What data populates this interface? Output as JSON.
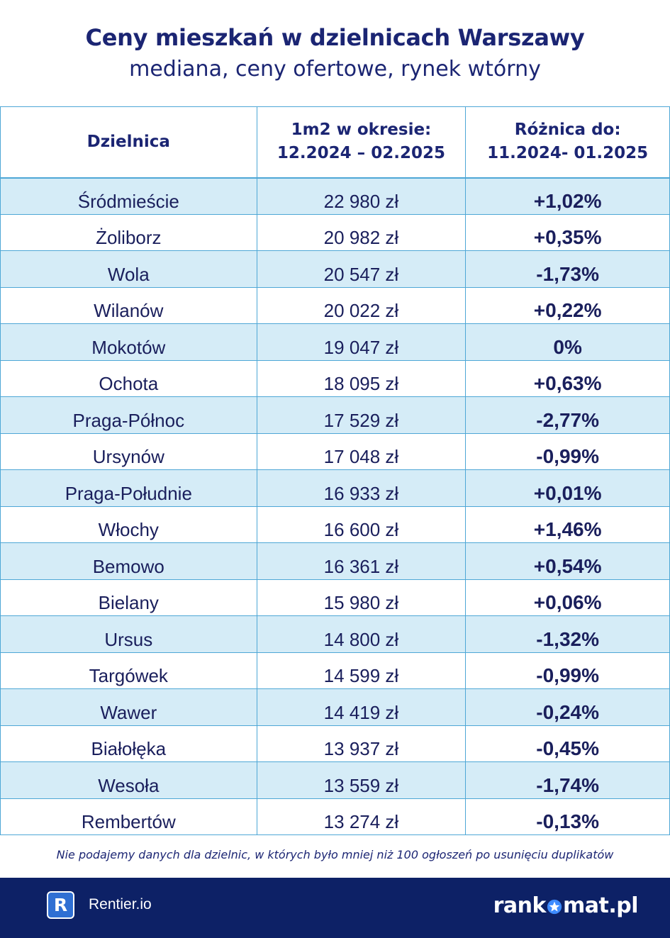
{
  "header": {
    "title": "Ceny mieszkań w dzielnicach Warszawy",
    "subtitle": "mediana, ceny ofertowe, rynek wtórny"
  },
  "table": {
    "columns": [
      {
        "line1": "Dzielnica",
        "line2": ""
      },
      {
        "line1": "1m2 w okresie:",
        "line2": "12.2024 – 02.2025"
      },
      {
        "line1": "Różnica do:",
        "line2": "11.2024- 01.2025"
      }
    ],
    "rows": [
      {
        "district": "Śródmieście",
        "price": "22 980 zł",
        "diff": "+1,02%"
      },
      {
        "district": "Żoliborz",
        "price": "20 982 zł",
        "diff": "+0,35%"
      },
      {
        "district": "Wola",
        "price": "20 547 zł",
        "diff": "-1,73%"
      },
      {
        "district": "Wilanów",
        "price": "20 022 zł",
        "diff": "+0,22%"
      },
      {
        "district": "Mokotów",
        "price": "19 047 zł",
        "diff": "0%"
      },
      {
        "district": "Ochota",
        "price": "18 095 zł",
        "diff": "+0,63%"
      },
      {
        "district": "Praga-Północ",
        "price": "17 529 zł",
        "diff": "-2,77%"
      },
      {
        "district": "Ursynów",
        "price": "17 048 zł",
        "diff": "-0,99%"
      },
      {
        "district": "Praga-Południe",
        "price": "16 933 zł",
        "diff": "+0,01%"
      },
      {
        "district": "Włochy",
        "price": "16 600 zł",
        "diff": "+1,46%"
      },
      {
        "district": "Bemowo",
        "price": "16 361 zł",
        "diff": "+0,54%"
      },
      {
        "district": "Bielany",
        "price": "15 980 zł",
        "diff": "+0,06%"
      },
      {
        "district": "Ursus",
        "price": "14 800 zł",
        "diff": "-1,32%"
      },
      {
        "district": "Targówek",
        "price": "14 599 zł",
        "diff": "-0,99%"
      },
      {
        "district": "Wawer",
        "price": "14 419 zł",
        "diff": "-0,24%"
      },
      {
        "district": "Białołęka",
        "price": "13 937 zł",
        "diff": "-0,45%"
      },
      {
        "district": "Wesoła",
        "price": "13 559 zł",
        "diff": "-1,74%"
      },
      {
        "district": "Rembertów",
        "price": "13 274 zł",
        "diff": "-0,13%"
      }
    ]
  },
  "note": "Nie podajemy danych dla dzielnic, w których było mniej niż 100 ogłoszeń po usunięciu duplikatów",
  "footer": {
    "rentier_logo_letter": "R",
    "rentier_name": "Rentier.io",
    "rankomat_part1": "rank",
    "rankomat_part2": "mat.pl",
    "star_icon": "star-icon"
  },
  "colors": {
    "primary": "#1b2573",
    "row_alt": "#d5ecf7",
    "border": "#4ea7d6",
    "footer_bg": "#0d2166"
  }
}
